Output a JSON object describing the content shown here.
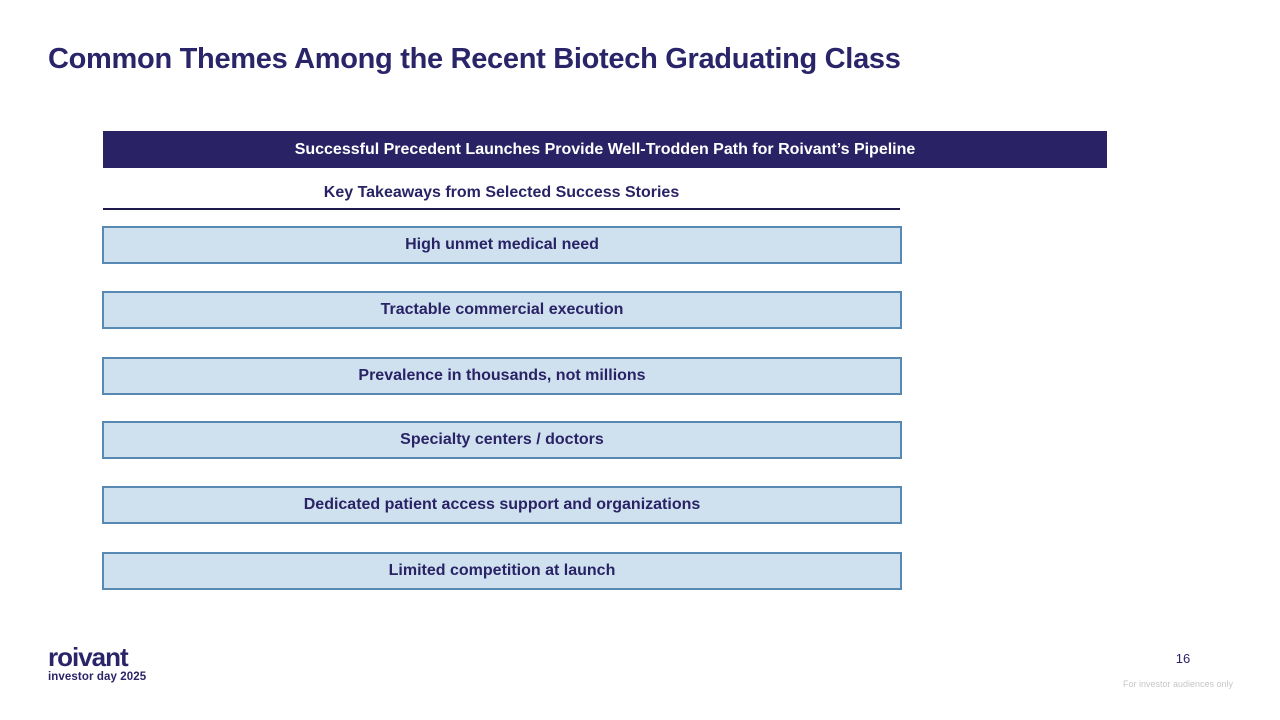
{
  "slide": {
    "title": "Common Themes Among the Recent Biotech Graduating Class",
    "banner": "Successful Precedent Launches Provide Well-Trodden Path for Roivant’s Pipeline",
    "subheading": "Key Takeaways from Selected Success Stories",
    "takeaways": [
      "High unmet medical need",
      "Tractable commercial execution",
      "Prevalence in thousands, not millions",
      "Specialty centers / doctors",
      "Dedicated patient access support and organizations",
      "Limited competition at launch"
    ],
    "footer": {
      "logo_text": "roivant",
      "logo_subtext": "investor day 2025",
      "page_number": "16",
      "disclaimer": "For investor audiences only"
    },
    "colors": {
      "navy_text": "#2a2468",
      "banner_background": "#292366",
      "box_fill": "#cfe1ef",
      "box_border": "#5789b3",
      "disclaimer_gray": "#c6c6c6"
    }
  }
}
